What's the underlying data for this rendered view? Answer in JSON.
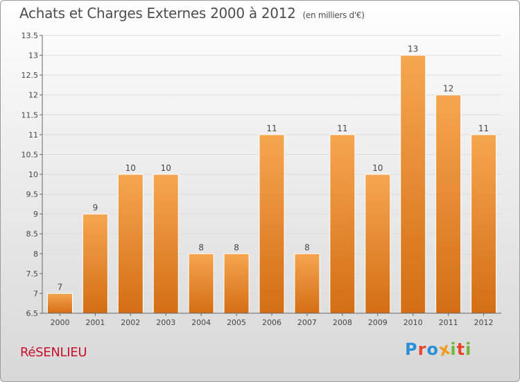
{
  "header": {
    "title": "Achats et Charges Externes 2000 à 2012",
    "subtitle": "(en milliers d'€)"
  },
  "footer": {
    "commune": "RéSENLIEU",
    "logo_letters": [
      "P",
      "r",
      "o",
      "x",
      "i",
      "t",
      "i"
    ],
    "logo_colors": [
      "#2a8fd8",
      "#e8452c",
      "#2a8fd8",
      "#f29b1d",
      "#6fb83c",
      "#e8452c",
      "#6fb83c"
    ]
  },
  "colors": {
    "bar_top": "#f6a650",
    "bar_bottom": "#d36e14",
    "bar_edge": "#ffffff",
    "axis": "#666666",
    "grid": "#dddddd",
    "text": "#444444",
    "commune": "#c8102e"
  },
  "chart_data": {
    "type": "bar",
    "title": "Achats et Charges Externes 2000 à 2012",
    "subtitle": "(en milliers d'€)",
    "categories": [
      "2000",
      "2001",
      "2002",
      "2003",
      "2004",
      "2005",
      "2006",
      "2007",
      "2008",
      "2009",
      "2010",
      "2011",
      "2012"
    ],
    "values": [
      7,
      9,
      10,
      10,
      8,
      8,
      11,
      8,
      11,
      10,
      13,
      12,
      11
    ],
    "data_labels": [
      "7",
      "9",
      "10",
      "10",
      "8",
      "8",
      "11",
      "8",
      "11",
      "10",
      "13",
      "12",
      "11"
    ],
    "ylim": [
      6.5,
      13.5
    ],
    "yticks": [
      6.5,
      7,
      7.5,
      8,
      8.5,
      9,
      9.5,
      10,
      10.5,
      11,
      11.5,
      12,
      12.5,
      13,
      13.5
    ],
    "ytick_labels": [
      "6.5",
      "7",
      "7.5",
      "8",
      "8.5",
      "9",
      "9.5",
      "10",
      "10.5",
      "11",
      "11.5",
      "12",
      "12.5",
      "13",
      "13.5"
    ],
    "grid": true,
    "xlabel": "",
    "ylabel": ""
  }
}
